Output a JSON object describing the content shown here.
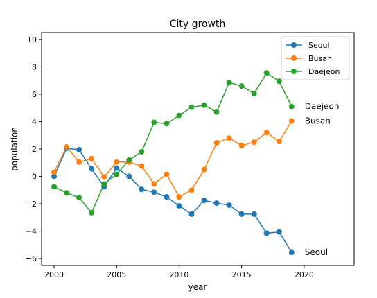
{
  "chart_data": {
    "type": "line",
    "title": "City growth",
    "xlabel": "year",
    "ylabel": "population",
    "xlim": [
      1999,
      2024
    ],
    "ylim": [
      -6.5,
      10.5
    ],
    "xticks": [
      2000,
      2005,
      2010,
      2015,
      2020
    ],
    "yticks": [
      -6,
      -4,
      -2,
      0,
      2,
      4,
      6,
      8,
      10
    ],
    "grid": false,
    "legend_position": "top-right",
    "x": [
      2000,
      2001,
      2002,
      2003,
      2004,
      2005,
      2006,
      2007,
      2008,
      2009,
      2010,
      2011,
      2012,
      2013,
      2014,
      2015,
      2016,
      2017,
      2018,
      2019
    ],
    "series": [
      {
        "name": "Seoul",
        "color": "#1f77b4",
        "end_label": "Seoul",
        "values": [
          0.0,
          2.05,
          1.95,
          0.55,
          -0.75,
          0.6,
          0.0,
          -0.95,
          -1.15,
          -1.5,
          -2.15,
          -2.75,
          -1.75,
          -1.95,
          -2.1,
          -2.75,
          -2.75,
          -4.15,
          -4.05,
          -5.55
        ]
      },
      {
        "name": "Busan",
        "color": "#ff7f0e",
        "end_label": "Busan",
        "values": [
          0.3,
          2.15,
          1.05,
          1.3,
          -0.05,
          1.05,
          1.05,
          0.75,
          -0.55,
          0.15,
          -1.5,
          -1.0,
          0.5,
          2.45,
          2.8,
          2.25,
          2.5,
          3.2,
          2.55,
          4.05
        ]
      },
      {
        "name": "Daejeon",
        "color": "#2ca02c",
        "end_label": "Daejeon",
        "values": [
          -0.75,
          -1.2,
          -1.55,
          -2.65,
          -0.55,
          0.15,
          1.2,
          1.8,
          3.95,
          3.85,
          4.45,
          5.05,
          5.2,
          4.7,
          6.85,
          6.6,
          6.05,
          7.55,
          6.95,
          5.1
        ]
      }
    ]
  }
}
